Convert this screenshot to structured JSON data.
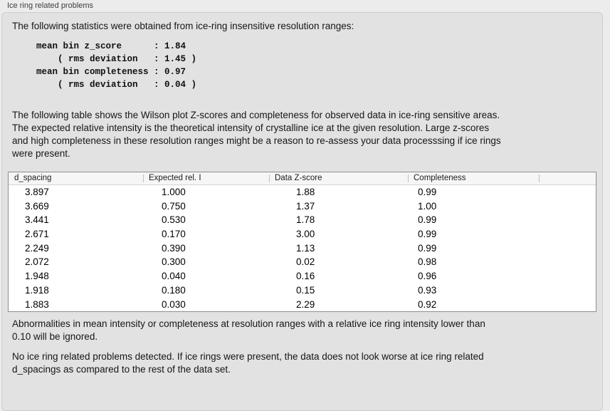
{
  "panel": {
    "title": "Ice ring related problems"
  },
  "stats": {
    "intro": "The following statistics were obtained from ice-ring insensitive resolution ranges:",
    "block": "mean bin z_score      : 1.84\n    ( rms deviation   : 1.45 )\nmean bin completeness : 0.97\n    ( rms deviation   : 0.04 )"
  },
  "description": "The following table shows the Wilson plot Z-scores and completeness for observed data in ice-ring sensitive areas.\nThe expected relative intensity is the theoretical intensity of crystalline ice at the given resolution. Large z-scores\nand high completeness in these resolution ranges might be a reason to re-assess your data processsing if ice rings\nwere present.",
  "table": {
    "columns": [
      "d_spacing",
      "Expected rel. I",
      "Data Z-score",
      "Completeness"
    ],
    "rows": [
      [
        "3.897",
        "1.000",
        "1.88",
        "0.99"
      ],
      [
        "3.669",
        "0.750",
        "1.37",
        "1.00"
      ],
      [
        "3.441",
        "0.530",
        "1.78",
        "0.99"
      ],
      [
        "2.671",
        "0.170",
        "3.00",
        "0.99"
      ],
      [
        "2.249",
        "0.390",
        "1.13",
        "0.99"
      ],
      [
        "2.072",
        "0.300",
        "0.02",
        "0.98"
      ],
      [
        "1.948",
        "0.040",
        "0.16",
        "0.96"
      ],
      [
        "1.918",
        "0.180",
        "0.15",
        "0.93"
      ],
      [
        "1.883",
        "0.030",
        "2.29",
        "0.92"
      ]
    ]
  },
  "ignore_note": "Abnormalities in mean intensity or completeness at resolution ranges with a relative ice ring intensity lower than\n0.10 will be ignored.",
  "conclusion": "No ice ring related problems detected. If ice rings were present, the data does not look worse at ice ring related\nd_spacings as compared to the rest of the data set."
}
